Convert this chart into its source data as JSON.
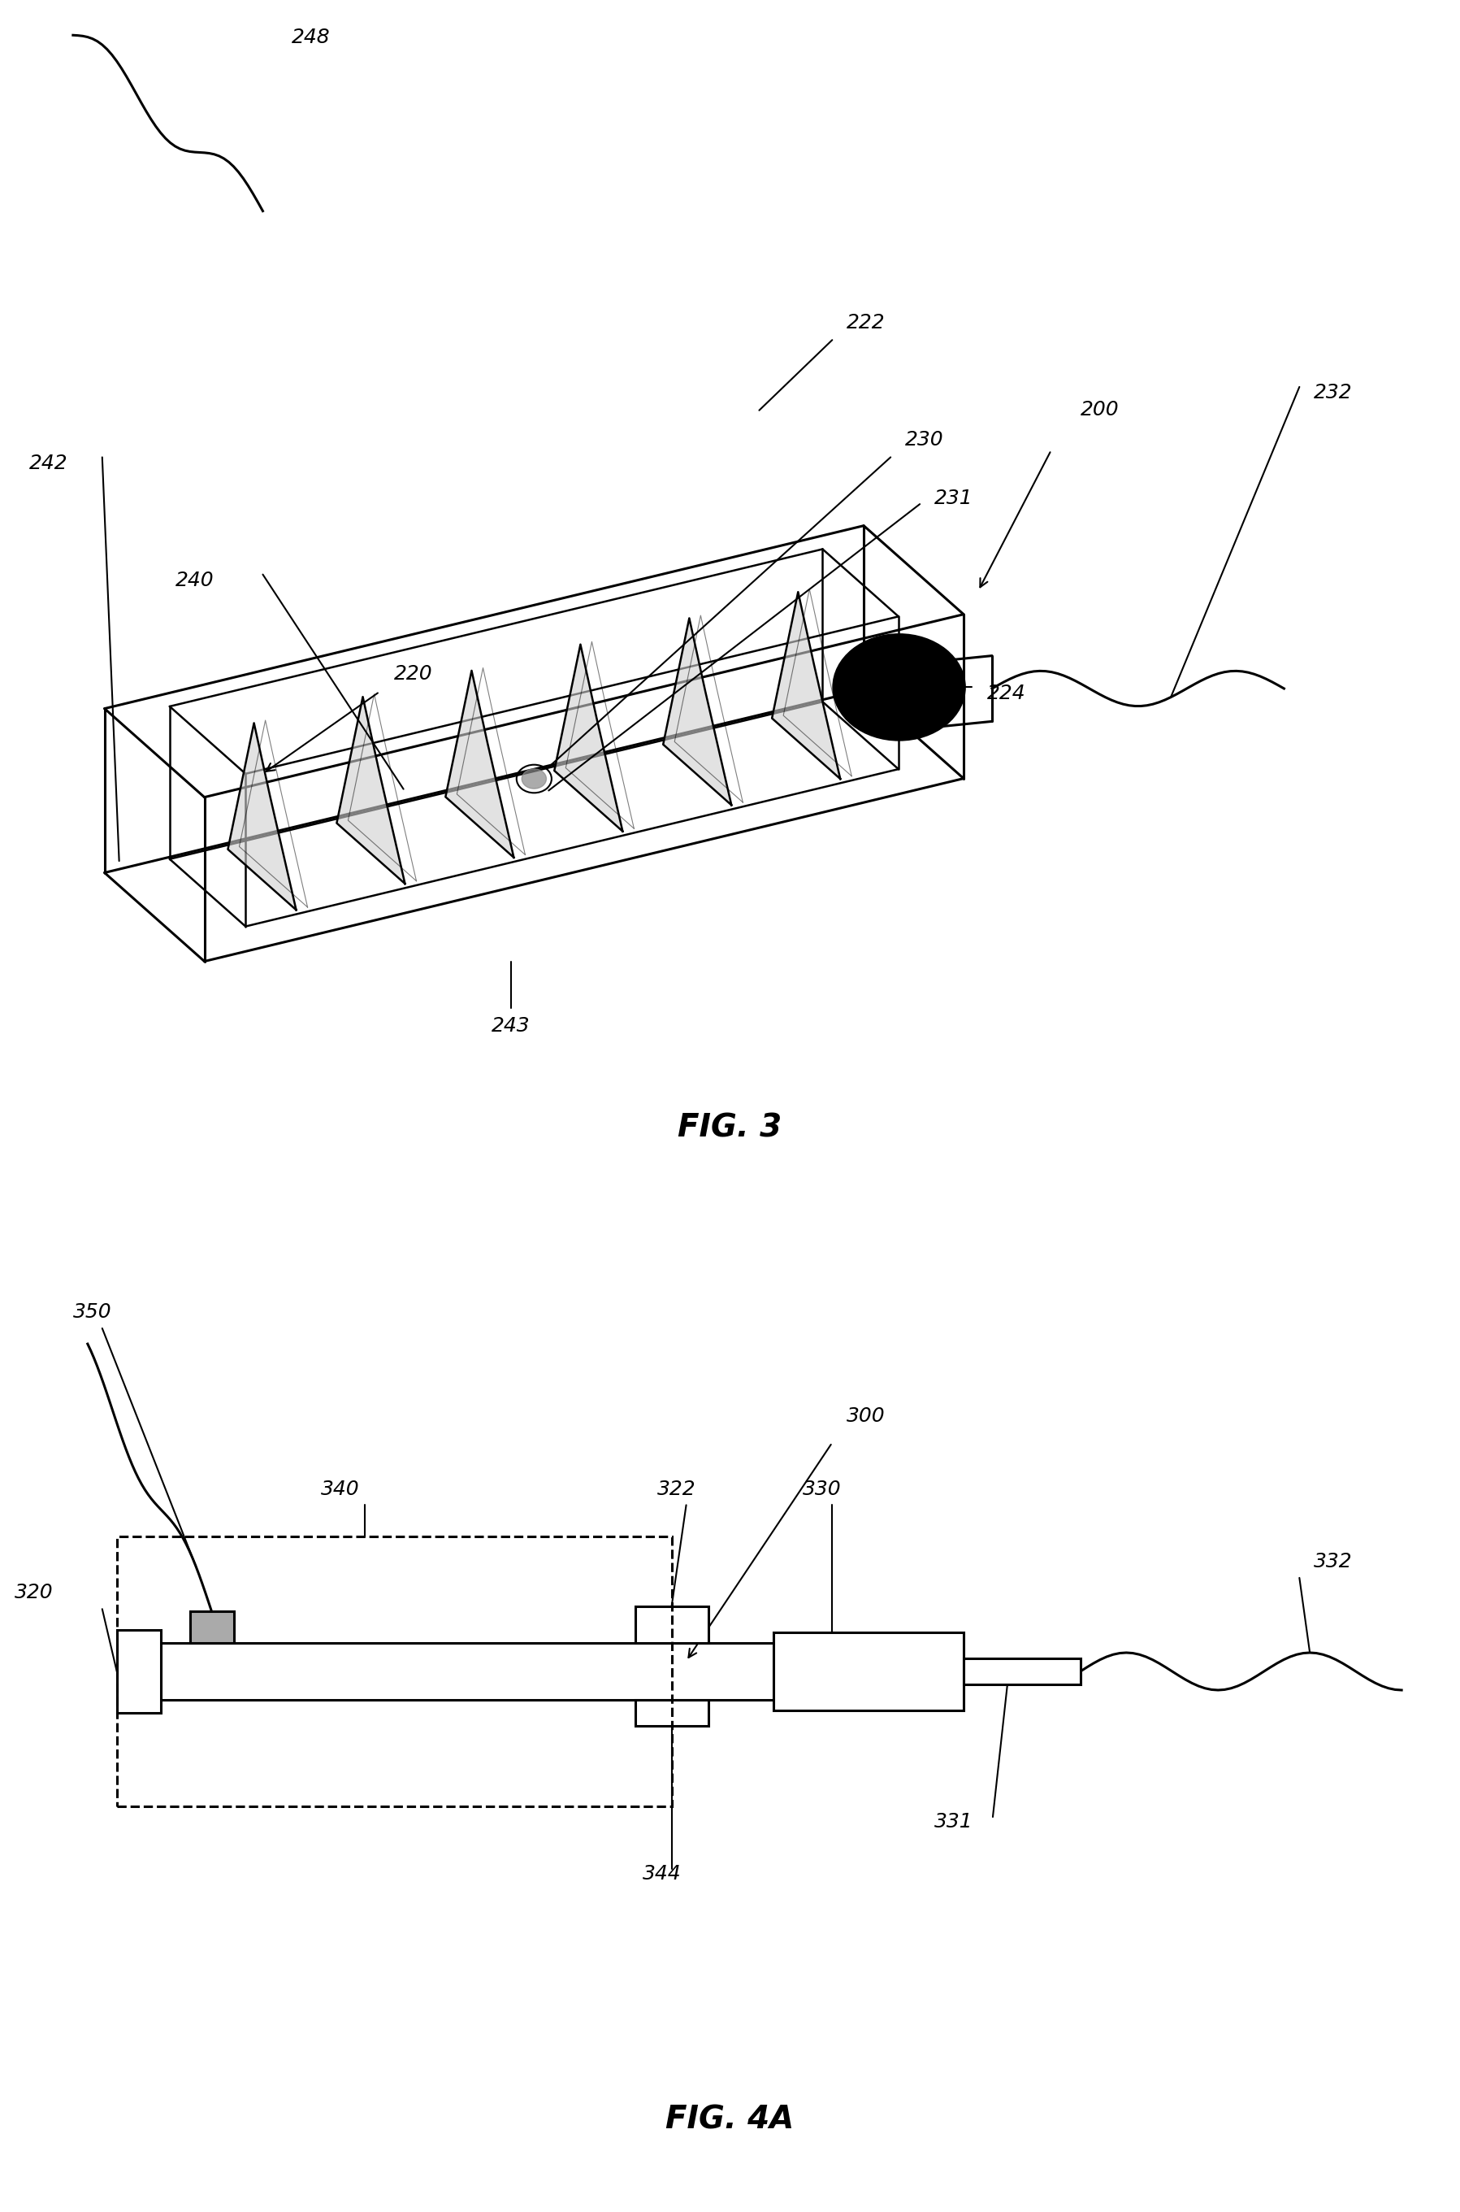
{
  "bg_color": "#ffffff",
  "line_color": "#000000",
  "fig3_title": "FIG. 3",
  "fig4a_title": "FIG. 4A",
  "label_fontsize": 18,
  "title_fontsize": 28,
  "label_style": "italic",
  "title_weight": "bold"
}
